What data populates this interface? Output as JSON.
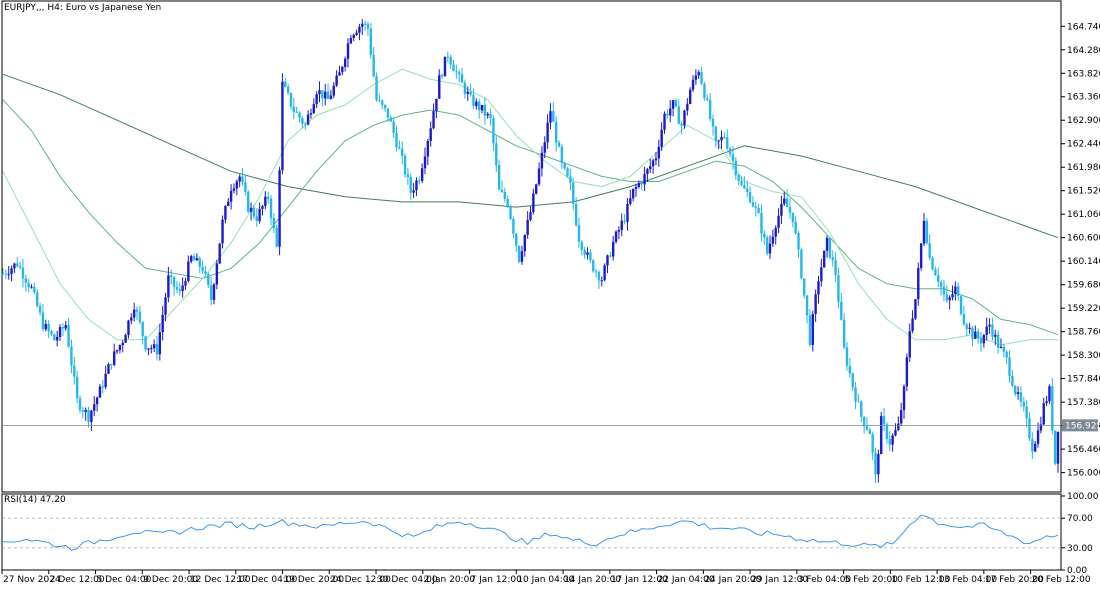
{
  "header": {
    "symbol": "EURJPY,,",
    "timeframe": "H4",
    "description": "Euro vs Japanese Yen"
  },
  "rsi_label": "RSI(14) 47.20",
  "colors": {
    "bull": "#1a1ad2",
    "bear": "#22b8ec",
    "ma_fast": "#8fe3b4",
    "ma_mid": "#5cb487",
    "ma_slow": "#3e7f5a",
    "rsi": "#1e90ff",
    "last_price_line": "#808a90",
    "last_price_box": "#7d8a96"
  },
  "chart_data": [
    {
      "type": "candlestick",
      "title": "EURJPY,, H4: Euro vs Japanese Yen",
      "ylim": [
        155.62,
        165.0
      ],
      "y_ticks": [
        "164.740",
        "164.280",
        "163.820",
        "163.360",
        "162.900",
        "162.440",
        "161.980",
        "161.520",
        "161.060",
        "160.600",
        "160.140",
        "159.680",
        "159.220",
        "158.760",
        "158.300",
        "157.840",
        "157.380",
        "156.920",
        "156.460",
        "156.000"
      ],
      "x_ticks": [
        "27 Nov 2024",
        "2 Dec 12:00",
        "5 Dec 04:00",
        "9 Dec 20:00",
        "12 Dec 12:00",
        "17 Dec 04:00",
        "19 Dec 20:00",
        "24 Dec 12:00",
        "30 Dec 04:00",
        "2 Jan 20:00",
        "7 Jan 12:00",
        "10 Jan 04:00",
        "14 Jan 20:00",
        "17 Jan 12:00",
        "22 Jan 04:00",
        "24 Jan 20:00",
        "29 Jan 12:00",
        "3 Feb 04:00",
        "5 Feb 20:00",
        "10 Feb 12:00",
        "13 Feb 04:00",
        "17 Feb 20:00",
        "20 Feb 12:00"
      ],
      "last_price": 156.925,
      "last_price_label": "156.925",
      "price_path": [
        [
          0,
          159.9
        ],
        [
          5,
          160.1
        ],
        [
          10,
          159.6
        ],
        [
          14,
          158.9
        ],
        [
          18,
          158.6
        ],
        [
          22,
          158.9
        ],
        [
          26,
          157.4
        ],
        [
          30,
          157.1
        ],
        [
          34,
          157.6
        ],
        [
          38,
          158.2
        ],
        [
          42,
          158.6
        ],
        [
          46,
          159.3
        ],
        [
          50,
          158.5
        ],
        [
          54,
          158.4
        ],
        [
          58,
          159.8
        ],
        [
          62,
          159.5
        ],
        [
          66,
          160.2
        ],
        [
          70,
          160.0
        ],
        [
          73,
          159.4
        ],
        [
          77,
          160.9
        ],
        [
          80,
          161.6
        ],
        [
          83,
          161.8
        ],
        [
          86,
          161.2
        ],
        [
          89,
          161.0
        ],
        [
          93,
          161.4
        ],
        [
          96,
          160.4
        ],
        [
          98,
          163.6
        ],
        [
          102,
          163.1
        ],
        [
          106,
          162.8
        ],
        [
          110,
          163.5
        ],
        [
          114,
          163.3
        ],
        [
          118,
          163.8
        ],
        [
          122,
          164.6
        ],
        [
          126,
          164.8
        ],
        [
          128,
          164.7
        ],
        [
          131,
          163.3
        ],
        [
          135,
          163.0
        ],
        [
          139,
          162.3
        ],
        [
          143,
          161.5
        ],
        [
          146,
          161.8
        ],
        [
          150,
          162.8
        ],
        [
          153,
          163.7
        ],
        [
          156,
          164.2
        ],
        [
          160,
          163.7
        ],
        [
          164,
          163.3
        ],
        [
          168,
          163.1
        ],
        [
          171,
          162.9
        ],
        [
          174,
          161.5
        ],
        [
          177,
          161.3
        ],
        [
          181,
          160.2
        ],
        [
          185,
          161.1
        ],
        [
          189,
          162.2
        ],
        [
          192,
          163.1
        ],
        [
          196,
          162.0
        ],
        [
          199,
          161.6
        ],
        [
          202,
          160.6
        ],
        [
          206,
          160.1
        ],
        [
          210,
          159.8
        ],
        [
          214,
          160.5
        ],
        [
          218,
          161.0
        ],
        [
          221,
          161.5
        ],
        [
          225,
          161.8
        ],
        [
          229,
          162.2
        ],
        [
          232,
          163.0
        ],
        [
          235,
          163.2
        ],
        [
          238,
          162.8
        ],
        [
          241,
          163.5
        ],
        [
          244,
          163.9
        ],
        [
          247,
          163.2
        ],
        [
          250,
          162.4
        ],
        [
          253,
          162.6
        ],
        [
          256,
          162.1
        ],
        [
          259,
          161.6
        ],
        [
          262,
          161.4
        ],
        [
          265,
          161.0
        ],
        [
          268,
          160.3
        ],
        [
          271,
          160.9
        ],
        [
          274,
          161.3
        ],
        [
          277,
          161.0
        ],
        [
          280,
          159.9
        ],
        [
          283,
          158.6
        ],
        [
          286,
          159.8
        ],
        [
          289,
          160.5
        ],
        [
          292,
          159.9
        ],
        [
          295,
          158.4
        ],
        [
          298,
          157.7
        ],
        [
          301,
          157.1
        ],
        [
          304,
          156.8
        ],
        [
          306,
          155.9
        ],
        [
          308,
          157.0
        ],
        [
          311,
          156.6
        ],
        [
          314,
          156.9
        ],
        [
          316,
          157.6
        ],
        [
          318,
          158.8
        ],
        [
          320,
          159.4
        ],
        [
          323,
          161.0
        ],
        [
          325,
          160.2
        ],
        [
          328,
          159.8
        ],
        [
          331,
          159.3
        ],
        [
          334,
          159.6
        ],
        [
          337,
          159.0
        ],
        [
          340,
          158.7
        ],
        [
          343,
          158.6
        ],
        [
          346,
          158.9
        ],
        [
          349,
          158.5
        ],
        [
          352,
          158.2
        ],
        [
          355,
          157.6
        ],
        [
          358,
          157.2
        ],
        [
          361,
          156.5
        ],
        [
          363,
          156.8
        ],
        [
          365,
          157.3
        ],
        [
          367,
          157.6
        ],
        [
          369,
          156.2
        ],
        [
          370,
          156.9
        ]
      ],
      "ma_fast": [
        [
          0,
          161.9
        ],
        [
          10,
          160.8
        ],
        [
          20,
          159.7
        ],
        [
          30,
          159.0
        ],
        [
          40,
          158.6
        ],
        [
          50,
          158.6
        ],
        [
          60,
          159.2
        ],
        [
          70,
          159.8
        ],
        [
          80,
          160.5
        ],
        [
          90,
          161.4
        ],
        [
          100,
          162.5
        ],
        [
          110,
          163.0
        ],
        [
          120,
          163.2
        ],
        [
          130,
          163.6
        ],
        [
          140,
          163.9
        ],
        [
          150,
          163.7
        ],
        [
          160,
          163.6
        ],
        [
          170,
          163.3
        ],
        [
          180,
          162.6
        ],
        [
          190,
          162.1
        ],
        [
          200,
          161.7
        ],
        [
          210,
          161.6
        ],
        [
          220,
          161.8
        ],
        [
          230,
          162.3
        ],
        [
          240,
          162.8
        ],
        [
          250,
          162.5
        ],
        [
          260,
          161.7
        ],
        [
          270,
          161.5
        ],
        [
          280,
          161.4
        ],
        [
          290,
          160.7
        ],
        [
          300,
          159.7
        ],
        [
          310,
          159.0
        ],
        [
          320,
          158.6
        ],
        [
          330,
          158.6
        ],
        [
          340,
          158.7
        ],
        [
          350,
          158.5
        ],
        [
          360,
          158.6
        ],
        [
          370,
          158.6
        ]
      ],
      "ma_mid": [
        [
          0,
          163.3
        ],
        [
          10,
          162.7
        ],
        [
          20,
          161.8
        ],
        [
          30,
          161.1
        ],
        [
          40,
          160.5
        ],
        [
          50,
          160.0
        ],
        [
          60,
          159.9
        ],
        [
          70,
          159.8
        ],
        [
          80,
          160.0
        ],
        [
          90,
          160.5
        ],
        [
          100,
          161.2
        ],
        [
          110,
          161.9
        ],
        [
          120,
          162.5
        ],
        [
          130,
          162.8
        ],
        [
          140,
          163.0
        ],
        [
          150,
          163.1
        ],
        [
          160,
          163.0
        ],
        [
          170,
          162.7
        ],
        [
          180,
          162.4
        ],
        [
          190,
          162.2
        ],
        [
          200,
          162.0
        ],
        [
          210,
          161.8
        ],
        [
          220,
          161.7
        ],
        [
          230,
          161.7
        ],
        [
          240,
          161.9
        ],
        [
          250,
          162.1
        ],
        [
          260,
          162.0
        ],
        [
          270,
          161.7
        ],
        [
          280,
          161.2
        ],
        [
          290,
          160.6
        ],
        [
          300,
          160.0
        ],
        [
          310,
          159.7
        ],
        [
          320,
          159.6
        ],
        [
          330,
          159.6
        ],
        [
          340,
          159.4
        ],
        [
          350,
          159.0
        ],
        [
          360,
          158.9
        ],
        [
          370,
          158.7
        ]
      ],
      "ma_slow": [
        [
          0,
          163.8
        ],
        [
          20,
          163.4
        ],
        [
          40,
          162.9
        ],
        [
          60,
          162.4
        ],
        [
          80,
          161.9
        ],
        [
          100,
          161.6
        ],
        [
          120,
          161.4
        ],
        [
          140,
          161.3
        ],
        [
          160,
          161.3
        ],
        [
          180,
          161.2
        ],
        [
          200,
          161.3
        ],
        [
          220,
          161.6
        ],
        [
          240,
          162.0
        ],
        [
          260,
          162.4
        ],
        [
          280,
          162.2
        ],
        [
          300,
          161.9
        ],
        [
          320,
          161.6
        ],
        [
          340,
          161.2
        ],
        [
          360,
          160.8
        ],
        [
          370,
          160.6
        ]
      ]
    },
    {
      "type": "line",
      "title": "RSI(14) 47.20",
      "ylim": [
        0,
        100
      ],
      "y_ticks": [
        "100.00",
        "70.00",
        "30.00",
        "0.00"
      ],
      "levels": [
        70,
        30
      ],
      "values": [
        [
          0,
          38
        ],
        [
          8,
          42
        ],
        [
          16,
          36
        ],
        [
          24,
          30
        ],
        [
          30,
          36
        ],
        [
          38,
          44
        ],
        [
          46,
          52
        ],
        [
          54,
          48
        ],
        [
          62,
          52
        ],
        [
          70,
          58
        ],
        [
          80,
          62
        ],
        [
          88,
          58
        ],
        [
          96,
          66
        ],
        [
          104,
          62
        ],
        [
          112,
          58
        ],
        [
          120,
          64
        ],
        [
          128,
          66
        ],
        [
          136,
          54
        ],
        [
          144,
          44
        ],
        [
          152,
          58
        ],
        [
          160,
          66
        ],
        [
          168,
          60
        ],
        [
          176,
          48
        ],
        [
          184,
          36
        ],
        [
          192,
          50
        ],
        [
          200,
          40
        ],
        [
          208,
          36
        ],
        [
          216,
          48
        ],
        [
          224,
          54
        ],
        [
          232,
          62
        ],
        [
          240,
          66
        ],
        [
          248,
          58
        ],
        [
          256,
          56
        ],
        [
          264,
          50
        ],
        [
          272,
          48
        ],
        [
          280,
          42
        ],
        [
          288,
          38
        ],
        [
          296,
          36
        ],
        [
          304,
          32
        ],
        [
          312,
          34
        ],
        [
          318,
          62
        ],
        [
          322,
          76
        ],
        [
          328,
          64
        ],
        [
          336,
          58
        ],
        [
          344,
          60
        ],
        [
          352,
          48
        ],
        [
          360,
          36
        ],
        [
          366,
          46
        ],
        [
          370,
          47
        ]
      ]
    }
  ]
}
